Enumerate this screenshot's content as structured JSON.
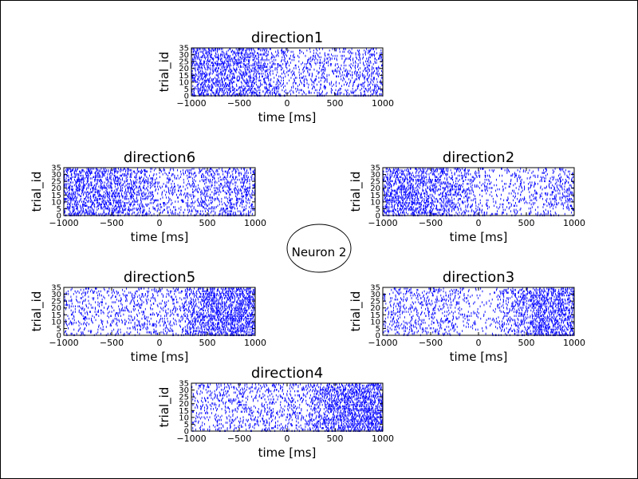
{
  "figure": {
    "center_label": "Neuron 2"
  },
  "chart_data": [
    {
      "type": "raster",
      "title": "direction1",
      "xlabel": "time [ms]",
      "ylabel": "trial_id",
      "xlim": [
        -1000,
        1000
      ],
      "ylim": [
        0,
        35
      ],
      "xticks": [
        -1000,
        -500,
        0,
        500,
        1000
      ],
      "yticks": [
        0,
        5,
        10,
        15,
        20,
        25,
        30,
        35
      ],
      "trials": 35,
      "spike_color": "#0000ff",
      "rate_profile": {
        "t": [
          -1000,
          -800,
          -600,
          -400,
          -200,
          0,
          200,
          400,
          600,
          800,
          1000
        ],
        "density": [
          0.7,
          0.75,
          0.7,
          0.75,
          0.6,
          0.3,
          0.3,
          0.35,
          0.35,
          0.45,
          0.55
        ]
      }
    },
    {
      "type": "raster",
      "title": "direction2",
      "xlabel": "time [ms]",
      "ylabel": "trial_id",
      "xlim": [
        -1000,
        1000
      ],
      "ylim": [
        0,
        35
      ],
      "xticks": [
        -1000,
        -500,
        0,
        500,
        1000
      ],
      "yticks": [
        0,
        5,
        10,
        15,
        20,
        25,
        30,
        35
      ],
      "trials": 35,
      "spike_color": "#0000ff",
      "rate_profile": {
        "t": [
          -1000,
          -800,
          -600,
          -400,
          -200,
          0,
          200,
          400,
          600,
          800,
          1000
        ],
        "density": [
          0.75,
          0.8,
          0.75,
          0.7,
          0.55,
          0.25,
          0.2,
          0.25,
          0.3,
          0.4,
          0.45
        ]
      }
    },
    {
      "type": "raster",
      "title": "direction3",
      "xlabel": "time [ms]",
      "ylabel": "trial_id",
      "xlim": [
        -1000,
        1000
      ],
      "ylim": [
        0,
        35
      ],
      "xticks": [
        -1000,
        -500,
        0,
        500,
        1000
      ],
      "yticks": [
        0,
        5,
        10,
        15,
        20,
        25,
        30,
        35
      ],
      "trials": 35,
      "spike_color": "#0000ff",
      "rate_profile": {
        "t": [
          -1000,
          -800,
          -600,
          -400,
          -200,
          0,
          200,
          400,
          600,
          800,
          1000
        ],
        "density": [
          0.35,
          0.35,
          0.35,
          0.35,
          0.3,
          0.1,
          0.2,
          0.55,
          0.8,
          0.85,
          0.8
        ]
      }
    },
    {
      "type": "raster",
      "title": "direction4",
      "xlabel": "time [ms]",
      "ylabel": "trial_id",
      "xlim": [
        -1000,
        1000
      ],
      "ylim": [
        0,
        35
      ],
      "xticks": [
        -1000,
        -500,
        0,
        500,
        1000
      ],
      "yticks": [
        0,
        5,
        10,
        15,
        20,
        25,
        30,
        35
      ],
      "trials": 35,
      "spike_color": "#0000ff",
      "rate_profile": {
        "t": [
          -1000,
          -800,
          -600,
          -400,
          -200,
          0,
          200,
          400,
          600,
          800,
          1000
        ],
        "density": [
          0.3,
          0.3,
          0.3,
          0.3,
          0.3,
          0.3,
          0.4,
          0.75,
          0.95,
          1.0,
          0.95
        ]
      }
    },
    {
      "type": "raster",
      "title": "direction5",
      "xlabel": "time [ms]",
      "ylabel": "trial_id",
      "xlim": [
        -1000,
        1000
      ],
      "ylim": [
        0,
        35
      ],
      "xticks": [
        -1000,
        -500,
        0,
        500,
        1000
      ],
      "yticks": [
        0,
        5,
        10,
        15,
        20,
        25,
        30,
        35
      ],
      "trials": 35,
      "spike_color": "#0000ff",
      "rate_profile": {
        "t": [
          -1000,
          -800,
          -600,
          -400,
          -200,
          0,
          200,
          400,
          600,
          800,
          1000
        ],
        "density": [
          0.3,
          0.3,
          0.3,
          0.3,
          0.35,
          0.3,
          0.4,
          0.8,
          1.0,
          1.0,
          0.95
        ]
      }
    },
    {
      "type": "raster",
      "title": "direction6",
      "xlabel": "time [ms]",
      "ylabel": "trial_id",
      "xlim": [
        -1000,
        1000
      ],
      "ylim": [
        0,
        35
      ],
      "xticks": [
        -1000,
        -500,
        0,
        500,
        1000
      ],
      "yticks": [
        0,
        5,
        10,
        15,
        20,
        25,
        30,
        35
      ],
      "trials": 35,
      "spike_color": "#0000ff",
      "rate_profile": {
        "t": [
          -1000,
          -800,
          -600,
          -400,
          -200,
          0,
          200,
          400,
          600,
          800,
          1000
        ],
        "density": [
          0.75,
          0.8,
          0.75,
          0.7,
          0.55,
          0.3,
          0.3,
          0.45,
          0.5,
          0.55,
          0.6
        ]
      }
    }
  ]
}
